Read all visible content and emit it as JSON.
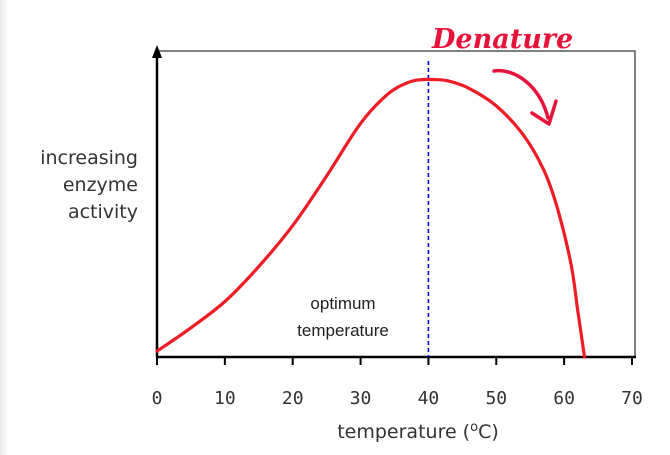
{
  "chart_data": {
    "type": "line",
    "title": "",
    "xlabel": "temperature (°C)",
    "xlabel_parts": {
      "text": "temperature (",
      "superscript": "o",
      "unit": "C",
      "close": ")"
    },
    "ylabel_lines": [
      "increasing",
      "enzyme",
      "activity"
    ],
    "xlim": [
      0,
      70
    ],
    "x_ticks": [
      "0",
      "10",
      "20",
      "30",
      "40",
      "50",
      "60",
      "70"
    ],
    "x_tick_values": [
      0,
      10,
      20,
      30,
      40,
      50,
      60,
      70
    ],
    "ylim": [
      0,
      100
    ],
    "grid": false,
    "series": [
      {
        "color": "#ee1c25",
        "x": [
          0,
          5,
          10,
          15,
          20,
          25,
          30,
          34,
          37,
          39,
          41,
          43,
          46,
          50,
          54,
          57,
          59,
          61,
          62,
          63
        ],
        "y": [
          2,
          10,
          19,
          31,
          45,
          62,
          80,
          90,
          94,
          95,
          95,
          94.5,
          92,
          86,
          76,
          64,
          51,
          32,
          16,
          0
        ]
      }
    ],
    "optimum_line": {
      "x": 40,
      "color": "#0000ee"
    },
    "annotations": {
      "optimum": [
        "optimum",
        "temperature"
      ],
      "handwritten": "Denature"
    }
  },
  "colors": {
    "axis": "#000000",
    "curve": "#ee1c25",
    "optimum_line": "#0000ee",
    "handwriting": "#e8133b"
  }
}
